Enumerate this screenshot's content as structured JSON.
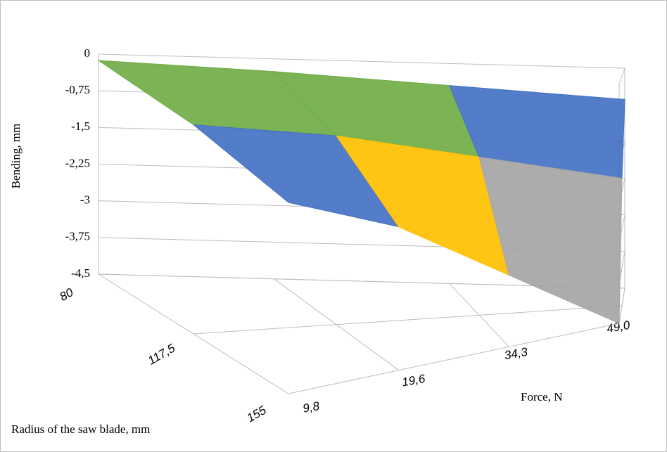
{
  "chart_data": {
    "type": "surface3d",
    "y_label": "Bending, mm",
    "x_label": "Force, N",
    "depth_label": "Radius of the saw blade, mm",
    "categories": [
      "9,8",
      "19,6",
      "34,3",
      "49,0"
    ],
    "series": [
      {
        "name": "80",
        "values": [
          -0.13,
          -0.26,
          -0.45,
          -0.64
        ]
      },
      {
        "name": "117,5",
        "values": [
          -0.4,
          -0.8,
          -1.4,
          -2.0
        ]
      },
      {
        "name": "155",
        "values": [
          -0.9,
          -1.8,
          -3.15,
          -4.5
        ]
      }
    ],
    "ylim": [
      -4.5,
      0
    ],
    "yticks": [
      0,
      {
        "value": -0.75,
        "label": "-0,75"
      },
      {
        "value": -1.5,
        "label": "-1,5"
      },
      {
        "value": -2.25,
        "label": "-2,25"
      },
      -3,
      {
        "value": -3.75,
        "label": "-3,75"
      },
      {
        "value": -4.5,
        "label": "-4,5"
      }
    ],
    "band_colors": [
      "#70ad47",
      "#4472c4",
      "#ffc000",
      "#a5a5a5",
      "#ed7d31",
      "#5b9bd5"
    ],
    "grid": true
  }
}
